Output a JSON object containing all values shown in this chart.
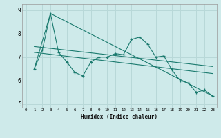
{
  "xlabel": "Humidex (Indice chaleur)",
  "bg_color": "#ceeaea",
  "grid_color": "#b8d8d8",
  "line_color": "#1a7a6e",
  "xlim": [
    -0.5,
    23.5
  ],
  "ylim": [
    4.85,
    9.25
  ],
  "xticks": [
    0,
    1,
    2,
    3,
    4,
    5,
    6,
    7,
    8,
    9,
    10,
    11,
    12,
    13,
    14,
    15,
    16,
    17,
    18,
    19,
    20,
    21,
    22,
    23
  ],
  "yticks": [
    5,
    6,
    7,
    8,
    9
  ],
  "series0_x": [
    1,
    2,
    3,
    4,
    5,
    6,
    7,
    8,
    9,
    10,
    11,
    12,
    13,
    14,
    15,
    16,
    17,
    18,
    19,
    20,
    21,
    22,
    23
  ],
  "series0_y": [
    6.5,
    7.3,
    8.85,
    7.2,
    6.8,
    6.35,
    6.2,
    6.8,
    7.0,
    7.0,
    7.15,
    7.1,
    7.75,
    7.85,
    7.55,
    7.0,
    7.05,
    6.45,
    6.0,
    5.9,
    5.5,
    5.6,
    5.35
  ],
  "line1_x": [
    1,
    3,
    23
  ],
  "line1_y": [
    6.5,
    8.85,
    5.35
  ],
  "line2_x": [
    1,
    23
  ],
  "line2_y": [
    7.45,
    6.6
  ],
  "line3_x": [
    1,
    23
  ],
  "line3_y": [
    7.2,
    6.3
  ]
}
